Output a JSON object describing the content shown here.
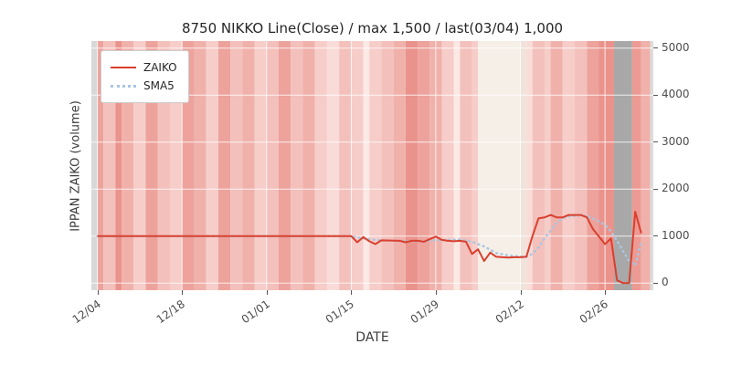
{
  "chart_data": {
    "type": "line",
    "title": "8750 NIKKO Line(Close) / max 1,500 / last(03/04) 1,000",
    "xlabel": "DATE",
    "ylabel": "IPPAN ZAIKO (volume)",
    "x_unit": "days since 12/04",
    "xlim": [
      -1,
      92
    ],
    "ylim": [
      -150,
      5150
    ],
    "yticks": [
      0,
      1000,
      2000,
      3000,
      4000,
      5000
    ],
    "xticks": [
      {
        "day": 0,
        "label": "12/04"
      },
      {
        "day": 14,
        "label": "12/18"
      },
      {
        "day": 28,
        "label": "01/01"
      },
      {
        "day": 42,
        "label": "01/15"
      },
      {
        "day": 56,
        "label": "01/29"
      },
      {
        "day": 70,
        "label": "02/12"
      },
      {
        "day": 84,
        "label": "02/26"
      }
    ],
    "grid_color": "rgba(255,255,255,0.8)",
    "legend_position": "upper-left",
    "series": [
      {
        "name": "ZAIKO",
        "color": "#d9402e",
        "style": "solid",
        "points": [
          [
            0,
            1000
          ],
          [
            7,
            1000
          ],
          [
            14,
            1000
          ],
          [
            21,
            1000
          ],
          [
            28,
            1000
          ],
          [
            35,
            1000
          ],
          [
            42,
            1000
          ],
          [
            43,
            870
          ],
          [
            44,
            980
          ],
          [
            45,
            890
          ],
          [
            46,
            830
          ],
          [
            47,
            910
          ],
          [
            50,
            900
          ],
          [
            51,
            870
          ],
          [
            52,
            900
          ],
          [
            53,
            900
          ],
          [
            54,
            880
          ],
          [
            56,
            990
          ],
          [
            57,
            920
          ],
          [
            58,
            900
          ],
          [
            59,
            890
          ],
          [
            60,
            900
          ],
          [
            61,
            880
          ],
          [
            62,
            620
          ],
          [
            63,
            720
          ],
          [
            64,
            470
          ],
          [
            65,
            650
          ],
          [
            66,
            560
          ],
          [
            67,
            550
          ],
          [
            68,
            545
          ],
          [
            69,
            550
          ],
          [
            70,
            550
          ],
          [
            71,
            560
          ],
          [
            72,
            1000
          ],
          [
            73,
            1380
          ],
          [
            74,
            1400
          ],
          [
            75,
            1450
          ],
          [
            76,
            1400
          ],
          [
            77,
            1400
          ],
          [
            78,
            1450
          ],
          [
            79,
            1450
          ],
          [
            80,
            1450
          ],
          [
            81,
            1400
          ],
          [
            82,
            1150
          ],
          [
            84,
            830
          ],
          [
            85,
            950
          ],
          [
            86,
            60
          ],
          [
            87,
            0
          ],
          [
            88,
            0
          ],
          [
            89,
            1520
          ],
          [
            90,
            1060
          ]
        ]
      },
      {
        "name": "SMA5",
        "color": "#a9c6e2",
        "style": "dotted",
        "points": [
          [
            0,
            1000
          ],
          [
            10,
            1000
          ],
          [
            20,
            1000
          ],
          [
            30,
            1000
          ],
          [
            40,
            1000
          ],
          [
            42,
            1000
          ],
          [
            44,
            950
          ],
          [
            46,
            920
          ],
          [
            48,
            905
          ],
          [
            50,
            898
          ],
          [
            52,
            892
          ],
          [
            54,
            890
          ],
          [
            56,
            915
          ],
          [
            58,
            920
          ],
          [
            60,
            930
          ],
          [
            62,
            880
          ],
          [
            64,
            780
          ],
          [
            66,
            640
          ],
          [
            68,
            590
          ],
          [
            70,
            565
          ],
          [
            71,
            560
          ],
          [
            72,
            620
          ],
          [
            73,
            760
          ],
          [
            74,
            950
          ],
          [
            75,
            1120
          ],
          [
            76,
            1280
          ],
          [
            77,
            1380
          ],
          [
            78,
            1420
          ],
          [
            79,
            1430
          ],
          [
            80,
            1440
          ],
          [
            81,
            1430
          ],
          [
            82,
            1380
          ],
          [
            84,
            1240
          ],
          [
            85,
            1100
          ],
          [
            86,
            900
          ],
          [
            87,
            680
          ],
          [
            88,
            470
          ],
          [
            89,
            380
          ],
          [
            90,
            880
          ]
        ]
      }
    ],
    "background_bands": [
      [
        -1,
        0,
        "#d8d8d8"
      ],
      [
        0,
        1,
        "#eda29c"
      ],
      [
        1,
        3,
        "#f3c0bb"
      ],
      [
        3,
        4,
        "#ea938c"
      ],
      [
        4,
        6,
        "#f0b1ab"
      ],
      [
        6,
        8,
        "#f6cdc9"
      ],
      [
        8,
        10,
        "#eda29c"
      ],
      [
        10,
        12,
        "#f3c0bb"
      ],
      [
        12,
        14,
        "#f6cdc9"
      ],
      [
        14,
        16,
        "#eda29c"
      ],
      [
        16,
        18,
        "#f0b1ab"
      ],
      [
        18,
        20,
        "#f6cdc9"
      ],
      [
        20,
        22,
        "#eda29c"
      ],
      [
        22,
        24,
        "#f3c0bb"
      ],
      [
        24,
        26,
        "#f0b1ab"
      ],
      [
        26,
        28,
        "#f6cdc9"
      ],
      [
        28,
        30,
        "#f3c0bb"
      ],
      [
        30,
        32,
        "#eda29c"
      ],
      [
        32,
        34,
        "#f3c0bb"
      ],
      [
        34,
        36,
        "#f0b1ab"
      ],
      [
        36,
        38,
        "#f6cdc9"
      ],
      [
        38,
        40,
        "#f9dcd8"
      ],
      [
        40,
        42,
        "#f3c0bb"
      ],
      [
        42,
        44,
        "#f6cdc9"
      ],
      [
        44,
        45,
        "#fbe9e5"
      ],
      [
        45,
        47,
        "#f6cdc9"
      ],
      [
        47,
        49,
        "#f3c0bb"
      ],
      [
        49,
        51,
        "#f0b1ab"
      ],
      [
        51,
        53,
        "#ea938c"
      ],
      [
        53,
        55,
        "#eda29c"
      ],
      [
        55,
        57,
        "#f0b1ab"
      ],
      [
        57,
        59,
        "#f6cdc9"
      ],
      [
        59,
        60,
        "#fbe9e5"
      ],
      [
        60,
        62,
        "#f3c0bb"
      ],
      [
        62,
        63,
        "#f6cdc9"
      ],
      [
        63,
        70,
        "#f5efe7"
      ],
      [
        70,
        71,
        "#f1e3da"
      ],
      [
        71,
        72,
        "#f9dcd8"
      ],
      [
        72,
        74,
        "#f3c0bb"
      ],
      [
        74,
        75,
        "#f6cdc9"
      ],
      [
        75,
        77,
        "#f0b1ab"
      ],
      [
        77,
        79,
        "#f6cdc9"
      ],
      [
        79,
        81,
        "#f3c0bb"
      ],
      [
        81,
        83,
        "#eda29c"
      ],
      [
        83,
        85.5,
        "#ea938c"
      ],
      [
        85.5,
        88.5,
        "#a8a8a8"
      ],
      [
        88.5,
        90,
        "#ec9a93"
      ],
      [
        90,
        91.5,
        "#f0b1ab"
      ],
      [
        91.5,
        92,
        "#dcdcdc"
      ]
    ]
  }
}
